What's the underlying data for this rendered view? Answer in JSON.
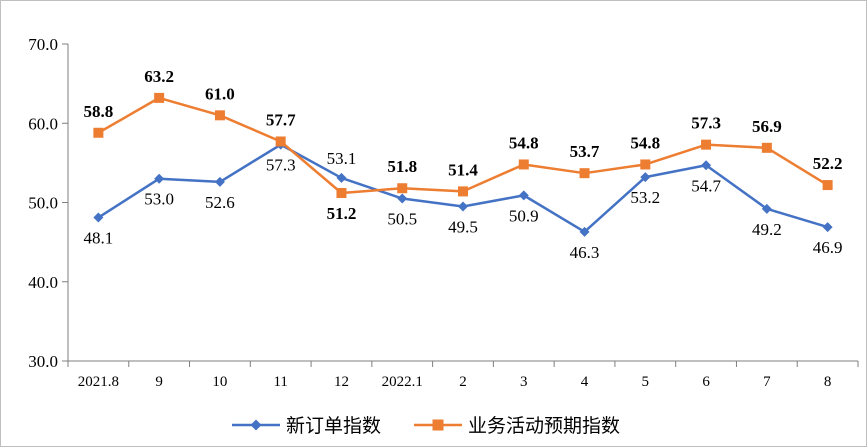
{
  "chart_data": {
    "type": "line",
    "categories": [
      "2021.8",
      "9",
      "10",
      "11",
      "12",
      "2022.1",
      "2",
      "3",
      "4",
      "5",
      "6",
      "7",
      "8"
    ],
    "series": [
      {
        "name": "新订单指数",
        "color": "#4472C4",
        "marker": "diamond",
        "values": [
          48.1,
          53.0,
          52.6,
          57.3,
          53.1,
          50.5,
          49.5,
          50.9,
          46.3,
          53.2,
          54.7,
          49.2,
          46.9
        ],
        "labels": [
          "48.1",
          "53.0",
          "52.6",
          "57.3",
          "53.1",
          "50.5",
          "49.5",
          "50.9",
          "46.3",
          "53.2",
          "54.7",
          "49.2",
          "46.9"
        ]
      },
      {
        "name": "业务活动预期指数",
        "color": "#ED7D31",
        "marker": "square",
        "values": [
          58.8,
          63.2,
          61.0,
          57.7,
          51.2,
          51.8,
          51.4,
          54.8,
          53.7,
          54.8,
          57.3,
          56.9,
          52.2
        ],
        "labels": [
          "58.8",
          "63.2",
          "61.0",
          "57.7",
          "51.2",
          "51.8",
          "51.4",
          "54.8",
          "53.7",
          "54.8",
          "57.3",
          "56.9",
          "52.2"
        ]
      }
    ],
    "ylim": [
      30,
      70
    ],
    "yticks": [
      "30.0",
      "40.0",
      "50.0",
      "60.0",
      "70.0"
    ],
    "ytick_values": [
      30,
      40,
      50,
      60,
      70
    ],
    "grid": false,
    "legend_position": "bottom"
  }
}
